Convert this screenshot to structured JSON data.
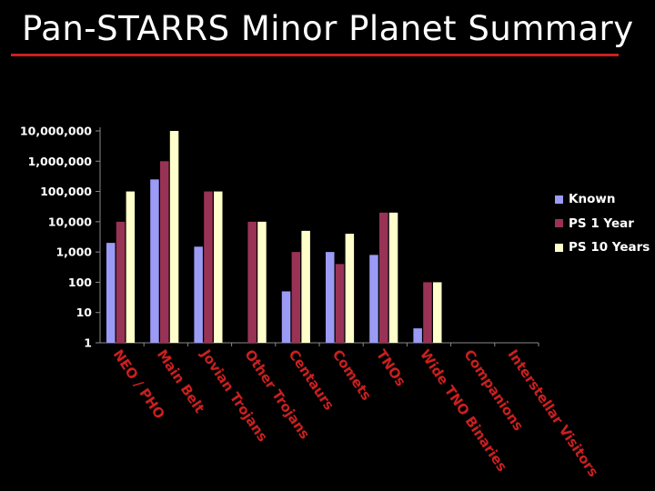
{
  "title": "Pan-STARRS Minor Planet Summary",
  "colors": {
    "background": "#000000",
    "title_rule": "#cc1f1f",
    "known": "#9b9bf5",
    "ps1": "#993355",
    "ps10": "#ffffcc"
  },
  "chart_data": {
    "type": "bar",
    "y_scale": "log",
    "ylim": [
      1,
      10000000
    ],
    "y_ticks": [
      "1",
      "10",
      "100",
      "1,000",
      "10,000",
      "100,000",
      "1,000,000",
      "10,000,000"
    ],
    "categories": [
      "NEO / PHO",
      "Main Belt",
      "Jovian Trojans",
      "Other Trojans",
      "Centaurs",
      "Comets",
      "TNOs",
      "Wide TNO Binaries",
      "Companions",
      "Interstellar Visitors"
    ],
    "series": [
      {
        "name": "Known",
        "color": "#9b9bf5",
        "values": [
          2000,
          250000,
          1500,
          null,
          50,
          1000,
          800,
          3,
          null,
          null
        ]
      },
      {
        "name": "PS 1 Year",
        "color": "#993355",
        "values": [
          10000,
          1000000,
          100000,
          10000,
          1000,
          400,
          20000,
          100,
          null,
          null
        ]
      },
      {
        "name": "PS 10 Years",
        "color": "#ffffcc",
        "values": [
          100000,
          10000000,
          100000,
          10000,
          5000,
          4000,
          20000,
          100,
          null,
          null
        ]
      }
    ],
    "legend_position": "right",
    "grid": false
  }
}
